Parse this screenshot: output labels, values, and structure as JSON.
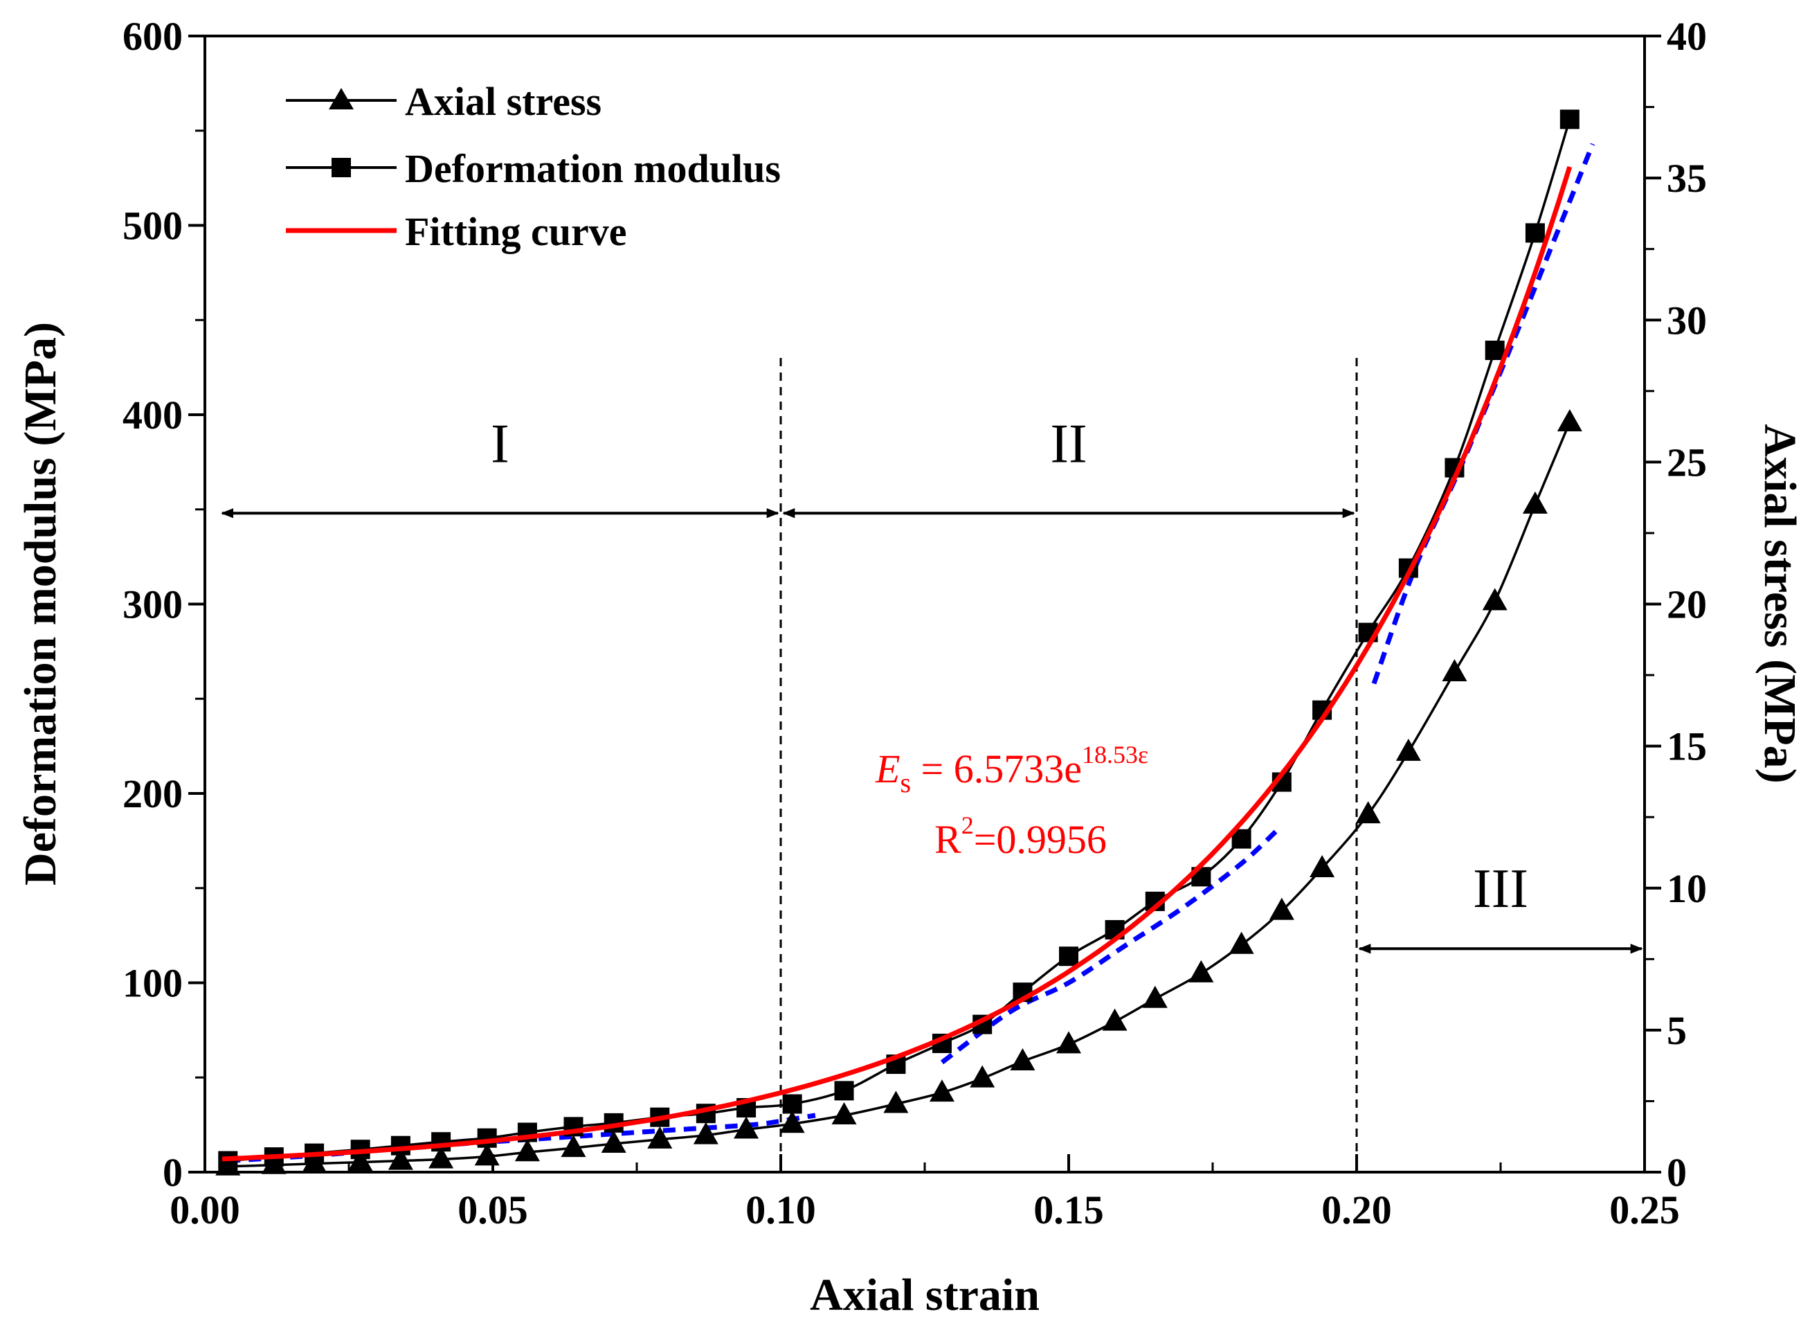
{
  "chart_data": {
    "type": "line",
    "title": "",
    "xlabel": "Axial strain",
    "ylabel_left": "Deformation modulus (MPa)",
    "ylabel_right": "Axial stress (MPa)",
    "xlim": [
      0,
      0.25
    ],
    "ylim_left": [
      0,
      600
    ],
    "ylim_right": [
      0,
      40
    ],
    "x_ticks": [
      "0.00",
      "0.05",
      "0.10",
      "0.15",
      "0.20",
      "0.25"
    ],
    "y_left_ticks": [
      "0",
      "100",
      "200",
      "300",
      "400",
      "500",
      "600"
    ],
    "y_right_ticks": [
      "0",
      "5",
      "10",
      "15",
      "20",
      "25",
      "30",
      "35",
      "40"
    ],
    "grid": false,
    "legend": {
      "position": "top-left",
      "axial_stress": "Axial stress",
      "deformation_modulus": "Deformation modulus",
      "fitting_curve": "Fitting curve"
    },
    "series": [
      {
        "name": "Axial stress",
        "axis": "right",
        "marker": "triangle",
        "color": "#000000",
        "x": [
          0.004,
          0.012,
          0.019,
          0.027,
          0.034,
          0.041,
          0.049,
          0.056,
          0.064,
          0.071,
          0.079,
          0.087,
          0.094,
          0.102,
          0.111,
          0.12,
          0.128,
          0.135,
          0.142,
          0.15,
          0.158,
          0.165,
          0.173,
          0.18,
          0.187,
          0.194,
          0.202,
          0.209,
          0.217,
          0.224,
          0.231,
          0.237
        ],
        "y": [
          0.2,
          0.25,
          0.3,
          0.35,
          0.4,
          0.45,
          0.55,
          0.7,
          0.85,
          1.0,
          1.15,
          1.3,
          1.5,
          1.7,
          2.0,
          2.4,
          2.8,
          3.3,
          3.9,
          4.5,
          5.3,
          6.1,
          7.0,
          8.0,
          9.2,
          10.7,
          12.6,
          14.8,
          17.6,
          20.1,
          23.5,
          26.4
        ]
      },
      {
        "name": "Deformation modulus",
        "axis": "left",
        "marker": "square",
        "color": "#000000",
        "x": [
          0.004,
          0.012,
          0.019,
          0.027,
          0.034,
          0.041,
          0.049,
          0.056,
          0.064,
          0.071,
          0.079,
          0.087,
          0.094,
          0.102,
          0.111,
          0.12,
          0.128,
          0.135,
          0.142,
          0.15,
          0.158,
          0.165,
          0.173,
          0.18,
          0.187,
          0.194,
          0.202,
          0.209,
          0.217,
          0.224,
          0.231,
          0.237
        ],
        "y": [
          6,
          8,
          10,
          12,
          14,
          16,
          18,
          21,
          24,
          26,
          29,
          31,
          34,
          36,
          43,
          57,
          68,
          78,
          95,
          114,
          128,
          143,
          156,
          176,
          206,
          244,
          285,
          319,
          372,
          434,
          496,
          556
        ]
      }
    ],
    "fit": {
      "name": "Fitting curve",
      "axis": "left",
      "color": "#ff0000",
      "coefficient": 6.5733,
      "exponent": 18.53,
      "x_range": [
        0.003,
        0.237
      ],
      "equation_lhs": "E",
      "equation_lhs_sub": "s",
      "equation_rhs": " = 6.5733e",
      "equation_exp": "18.53ε",
      "r_squared_label": "R",
      "r_squared_exp": "2",
      "r_squared_value": "=0.9956"
    },
    "guide_lines": {
      "color": "#0000ff",
      "segments": [
        {
          "x": [
            0.004,
            0.02,
            0.04,
            0.06,
            0.08,
            0.095,
            0.1,
            0.106
          ],
          "y": [
            6,
            9,
            14,
            18,
            22,
            25,
            27,
            30
          ]
        },
        {
          "x": [
            0.128,
            0.14,
            0.15,
            0.16,
            0.17,
            0.18,
            0.186
          ],
          "y": [
            58,
            85,
            100,
            120,
            140,
            163,
            180
          ]
        },
        {
          "x": [
            0.203,
            0.21,
            0.218,
            0.226,
            0.234,
            0.241
          ],
          "y": [
            258,
            318,
            372,
            430,
            490,
            543
          ]
        }
      ]
    },
    "regions": {
      "boundaries": [
        0.1,
        0.2
      ],
      "labels": [
        {
          "text": "I",
          "x_from": 0.003,
          "x_to": 0.0995,
          "y_arrow": 348,
          "y_text": 375
        },
        {
          "text": "II",
          "x_from": 0.1005,
          "x_to": 0.1995,
          "y_arrow": 348,
          "y_text": 375
        },
        {
          "text": "III",
          "x_from": 0.2005,
          "x_to": 0.2495,
          "y_arrow": 118,
          "y_text": 140
        }
      ]
    }
  }
}
